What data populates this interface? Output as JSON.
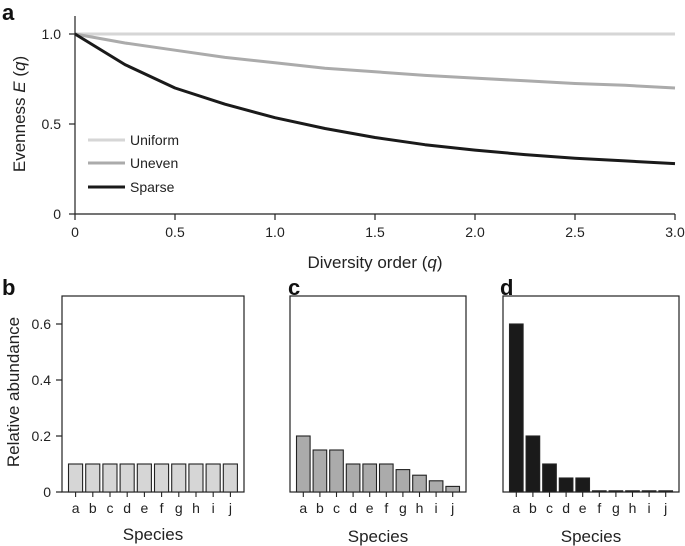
{
  "chart_data": [
    {
      "panel": "a",
      "type": "line",
      "xlabel_prefix": "Diversity order (",
      "xlabel_var": "q",
      "xlabel_suffix": ")",
      "ylabel_prefix": "Evenness ",
      "ylabel_var": "E",
      "ylabel_mid": " (",
      "ylabel_var2": "q",
      "ylabel_suffix": ")",
      "xlim": [
        0,
        3.0
      ],
      "ylim": [
        0,
        1.0
      ],
      "xticks": [
        "0",
        "0.5",
        "1.0",
        "1.5",
        "2.0",
        "2.5",
        "3.0"
      ],
      "xtick_values": [
        0,
        0.5,
        1.0,
        1.5,
        2.0,
        2.5,
        3.0
      ],
      "yticks": [
        "0",
        "0.5",
        "1.0"
      ],
      "ytick_values": [
        0,
        0.5,
        1.0
      ],
      "legend_position": "center-left",
      "series": [
        {
          "name": "Uniform",
          "color": "#d6d6d6",
          "x": [
            0,
            0.5,
            1.0,
            1.5,
            2.0,
            2.5,
            3.0
          ],
          "y": [
            1.0,
            1.0,
            1.0,
            1.0,
            1.0,
            1.0,
            1.0
          ]
        },
        {
          "name": "Uneven",
          "color": "#ababab",
          "x": [
            0,
            0.25,
            0.5,
            0.75,
            1.0,
            1.25,
            1.5,
            1.75,
            2.0,
            2.25,
            2.5,
            2.75,
            3.0
          ],
          "y": [
            1.0,
            0.95,
            0.91,
            0.87,
            0.84,
            0.81,
            0.79,
            0.77,
            0.755,
            0.74,
            0.725,
            0.715,
            0.7
          ]
        },
        {
          "name": "Sparse",
          "color": "#1a1a1a",
          "x": [
            0,
            0.25,
            0.5,
            0.75,
            1.0,
            1.25,
            1.5,
            1.75,
            2.0,
            2.25,
            2.5,
            2.75,
            3.0
          ],
          "y": [
            1.0,
            0.83,
            0.7,
            0.61,
            0.535,
            0.475,
            0.425,
            0.385,
            0.355,
            0.33,
            0.31,
            0.295,
            0.28
          ]
        }
      ]
    },
    {
      "panel": "b",
      "type": "bar",
      "xlabel": "Species",
      "ylabel": "Relative abundance",
      "ylim": [
        0,
        0.7
      ],
      "yticks": [
        "0",
        "0.2",
        "0.4",
        "0.6"
      ],
      "ytick_values": [
        0,
        0.2,
        0.4,
        0.6
      ],
      "color": "#d6d6d6",
      "categories": [
        "a",
        "b",
        "c",
        "d",
        "e",
        "f",
        "g",
        "h",
        "i",
        "j"
      ],
      "values": [
        0.1,
        0.1,
        0.1,
        0.1,
        0.1,
        0.1,
        0.1,
        0.1,
        0.1,
        0.1
      ]
    },
    {
      "panel": "c",
      "type": "bar",
      "xlabel": "Species",
      "ylim": [
        0,
        0.7
      ],
      "color": "#ababab",
      "categories": [
        "a",
        "b",
        "c",
        "d",
        "e",
        "f",
        "g",
        "h",
        "i",
        "j"
      ],
      "values": [
        0.2,
        0.15,
        0.15,
        0.1,
        0.1,
        0.1,
        0.08,
        0.06,
        0.04,
        0.02
      ]
    },
    {
      "panel": "d",
      "type": "bar",
      "xlabel": "Species",
      "ylim": [
        0,
        0.7
      ],
      "color": "#1a1a1a",
      "categories": [
        "a",
        "b",
        "c",
        "d",
        "e",
        "f",
        "g",
        "h",
        "i",
        "j"
      ],
      "values": [
        0.6,
        0.2,
        0.1,
        0.05,
        0.05,
        0.0,
        0.0,
        0.0,
        0.0,
        0.0
      ]
    }
  ]
}
